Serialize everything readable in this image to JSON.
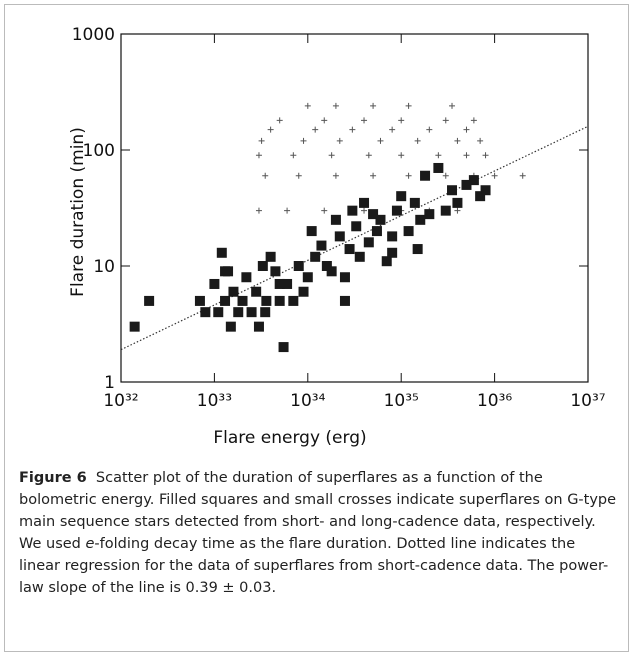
{
  "chart_data": {
    "type": "scatter",
    "xlabel": "Flare energy (erg)",
    "ylabel": "Flare duration (min)",
    "xscale": "log",
    "yscale": "log",
    "xlim": [
      1e+32,
      1e+37
    ],
    "ylim": [
      1,
      1000
    ],
    "xticks": [
      {
        "value": 1e+32,
        "label": "10³²"
      },
      {
        "value": 1e+33,
        "label": "10³³"
      },
      {
        "value": 1e+34,
        "label": "10³⁴"
      },
      {
        "value": 1e+35,
        "label": "10³⁵"
      },
      {
        "value": 1e+36,
        "label": "10³⁶"
      },
      {
        "value": 1e+37,
        "label": "10³⁷"
      }
    ],
    "yticks": [
      1,
      10,
      100,
      1000
    ],
    "series": [
      {
        "marker": "square",
        "color": "#1a1a1a",
        "x": [
          1.4e+32,
          2e+32,
          7e+32,
          8e+32,
          1e+33,
          1.1e+33,
          1.2e+33,
          1.3e+33,
          1.4e+33,
          1.5e+33,
          1.6e+33,
          1.8e+33,
          2e+33,
          2.2e+33,
          2.5e+33,
          2.8e+33,
          3e+33,
          3.3e+33,
          3.6e+33,
          4e+33,
          4.5e+33,
          5e+33,
          5.5e+33,
          6e+33,
          7e+33,
          8e+33,
          9e+33,
          1e+34,
          1.1e+34,
          1.2e+34,
          1.4e+34,
          1.6e+34,
          1.8e+34,
          2e+34,
          2.2e+34,
          2.5e+34,
          2.8e+34,
          3e+34,
          3.3e+34,
          3.6e+34,
          4e+34,
          4.5e+34,
          5e+34,
          5.5e+34,
          6e+34,
          7e+34,
          8e+34,
          9e+34,
          1e+35,
          1.2e+35,
          1.4e+35,
          1.6e+35,
          1.8e+35,
          2e+35,
          2.5e+35,
          3e+35,
          3.5e+35,
          4e+35,
          5e+35,
          6e+35,
          7e+35,
          8e+35,
          1.3e+33,
          3.5e+33,
          5e+33,
          2.5e+34,
          8e+34,
          1.5e+35
        ],
        "values": [
          3,
          5,
          5,
          4,
          7,
          4,
          13,
          5,
          9,
          3,
          6,
          4,
          5,
          8,
          4,
          6,
          3,
          10,
          5,
          12,
          9,
          5,
          2,
          7,
          5,
          10,
          6,
          8,
          20,
          12,
          15,
          10,
          9,
          25,
          18,
          8,
          14,
          30,
          22,
          12,
          35,
          16,
          28,
          20,
          25,
          11,
          13,
          30,
          40,
          20,
          35,
          25,
          60,
          28,
          70,
          30,
          45,
          35,
          50,
          55,
          40,
          45,
          9,
          4,
          7,
          5,
          18,
          14
        ]
      },
      {
        "marker": "cross",
        "color": "#555555",
        "x": [
          3e+33,
          6e+33,
          1.5e+34,
          4e+34,
          1e+35,
          2e+35,
          4e+35,
          3.5e+33,
          8e+33,
          2e+34,
          5e+34,
          1.2e+35,
          3e+35,
          6e+35,
          1e+36,
          2e+36,
          3e+33,
          7e+33,
          1.8e+34,
          4.5e+34,
          1e+35,
          2.5e+35,
          5e+35,
          8e+35,
          3.2e+33,
          9e+33,
          2.2e+34,
          6e+34,
          1.5e+35,
          4e+35,
          7e+35,
          4e+33,
          1.2e+34,
          3e+34,
          8e+34,
          2e+35,
          5e+35,
          5e+33,
          1.5e+34,
          4e+34,
          1e+35,
          3e+35,
          6e+35,
          1e+34,
          2e+34,
          5e+34,
          1.2e+35,
          3.5e+35
        ],
        "values": [
          30,
          30,
          30,
          30,
          30,
          30,
          30,
          60,
          60,
          60,
          60,
          60,
          60,
          60,
          60,
          60,
          90,
          90,
          90,
          90,
          90,
          90,
          90,
          90,
          120,
          120,
          120,
          120,
          120,
          120,
          120,
          150,
          150,
          150,
          150,
          150,
          150,
          180,
          180,
          180,
          180,
          180,
          180,
          240,
          240,
          240,
          240,
          240
        ]
      }
    ],
    "fit": {
      "style": "dotted",
      "color": "#333333",
      "x": [
        1e+32,
        1e+37
      ],
      "values": [
        1.9,
        160
      ]
    }
  },
  "caption": {
    "label": "Figure 6",
    "text": [
      "Scatter plot of the duration of superflares as a function of the bolometric energy. Filled squares and small crosses indicate superflares on G-type main sequence stars detected from short- and long-cadence data, respectively. We used ",
      "e",
      "-folding decay time as the flare duration. Dotted line indicates the linear regression for the data of superflares from short-cadence data. The power-law slope of the line is 0.39 ± 0.03."
    ]
  }
}
